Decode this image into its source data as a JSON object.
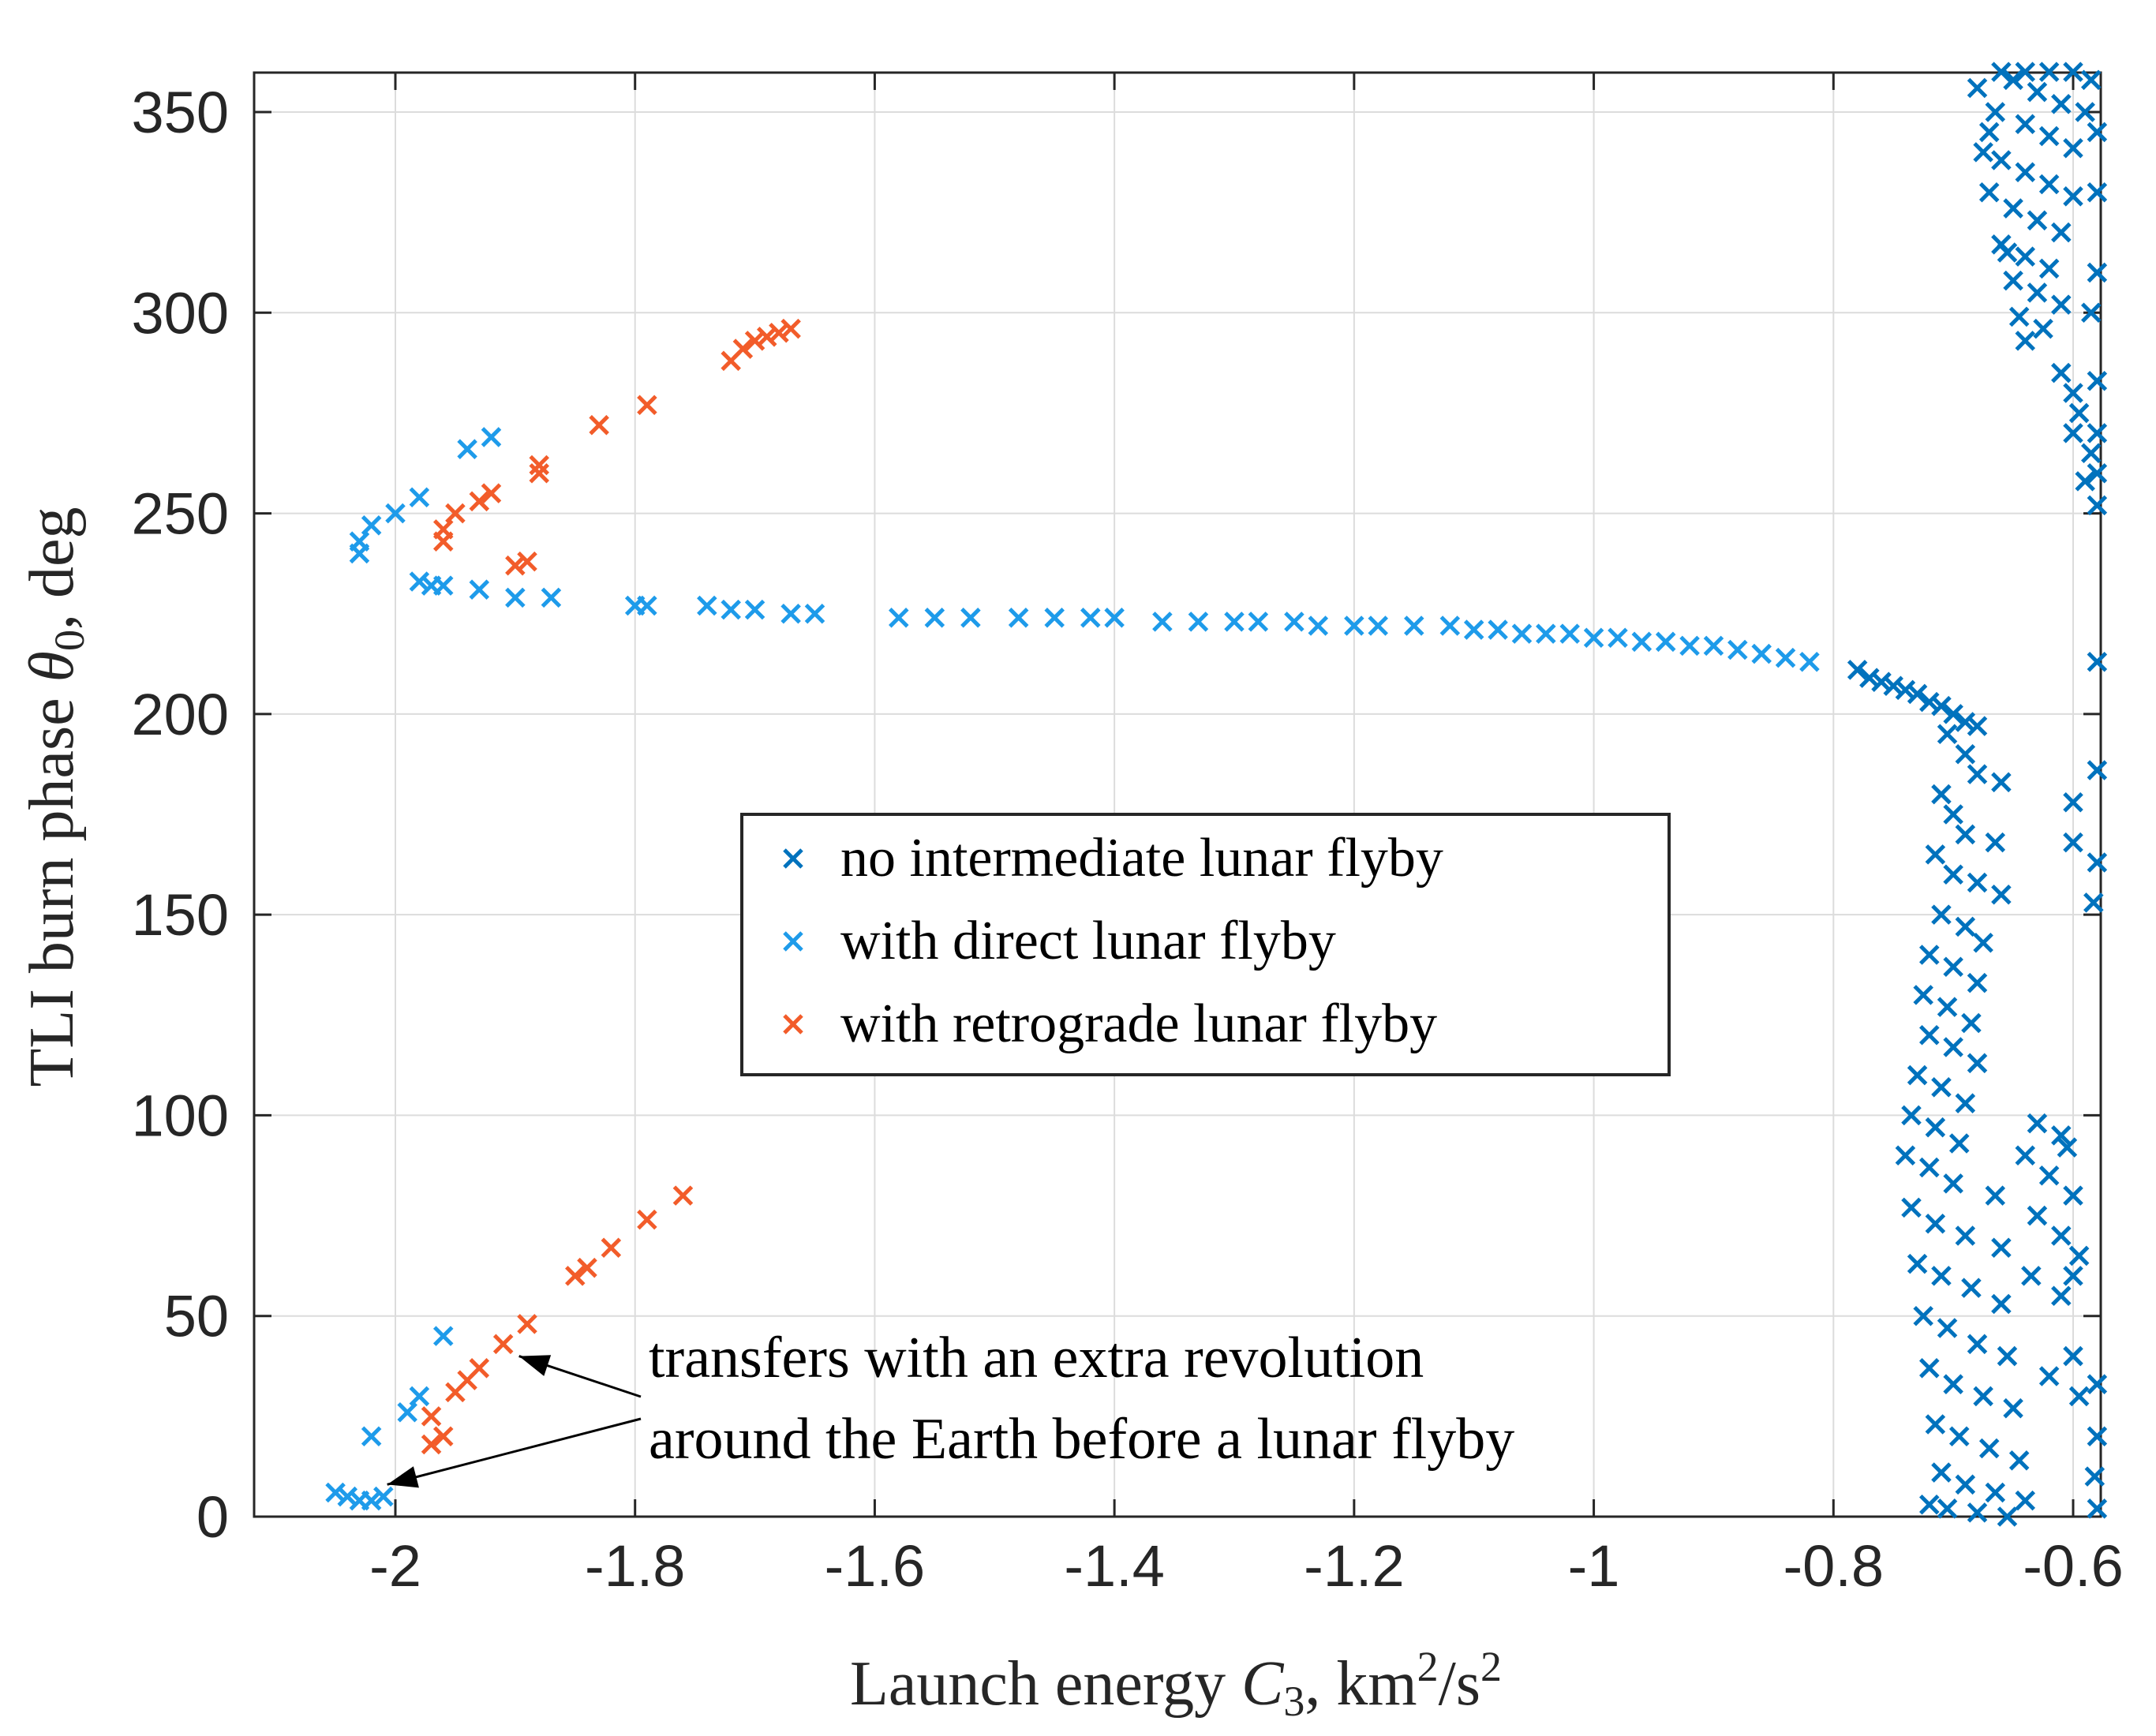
{
  "chart_data": {
    "type": "scatter",
    "xlabel_parts": {
      "prefix": "Launch energy",
      "var": "C",
      "sub": "3",
      "comma": ", km",
      "exp1": "2",
      "mid": "/s",
      "exp2": "2"
    },
    "ylabel_parts": {
      "prefix": "TLI burn phase",
      "var": "θ",
      "sub": "0",
      "suffix": ", deg"
    },
    "xlim": [
      -2.06,
      -0.58
    ],
    "ylim": [
      0,
      360
    ],
    "xticks": [
      -2,
      -1.8,
      -1.6,
      -1.4,
      -1.2,
      -1,
      -0.8,
      -0.6
    ],
    "xtick_labels": [
      "-2",
      "-1.8",
      "-1.6",
      "-1.4",
      "-1.2",
      "-1",
      "-0.8",
      "-0.6"
    ],
    "yticks": [
      0,
      50,
      100,
      150,
      200,
      250,
      300,
      350
    ],
    "ytick_labels": [
      "0",
      "50",
      "100",
      "150",
      "200",
      "250",
      "300",
      "350"
    ],
    "grid": true,
    "legend": {
      "placement": "center",
      "entries": [
        {
          "label": "no intermediate lunar flyby",
          "color": "#0072BD"
        },
        {
          "label": "with direct lunar flyby",
          "color": "#1E9BEA"
        },
        {
          "label": "with retrograde lunar flyby",
          "color": "#F25C2A"
        }
      ]
    },
    "annotation": {
      "lines": [
        "transfers with an extra revolution",
        "around the Earth before a lunar flyby"
      ],
      "arrow_targets": [
        [
          -1.91,
          40
        ],
        [
          -2.02,
          8
        ]
      ]
    },
    "series": [
      {
        "name": "no intermediate lunar flyby",
        "color": "#0072BD",
        "points": [
          [
            -0.78,
            211
          ],
          [
            -0.77,
            209
          ],
          [
            -0.76,
            208
          ],
          [
            -0.75,
            207
          ],
          [
            -0.74,
            206
          ],
          [
            -0.73,
            205
          ],
          [
            -0.72,
            203
          ],
          [
            -0.71,
            202
          ],
          [
            -0.7,
            200
          ],
          [
            -0.69,
            198
          ],
          [
            -0.68,
            197
          ],
          [
            -0.705,
            195
          ],
          [
            -0.69,
            190
          ],
          [
            -0.68,
            185
          ],
          [
            -0.66,
            183
          ],
          [
            -0.71,
            180
          ],
          [
            -0.7,
            175
          ],
          [
            -0.69,
            170
          ],
          [
            -0.665,
            168
          ],
          [
            -0.715,
            165
          ],
          [
            -0.7,
            160
          ],
          [
            -0.68,
            158
          ],
          [
            -0.66,
            155
          ],
          [
            -0.71,
            150
          ],
          [
            -0.69,
            147
          ],
          [
            -0.675,
            143
          ],
          [
            -0.72,
            140
          ],
          [
            -0.7,
            137
          ],
          [
            -0.68,
            133
          ],
          [
            -0.725,
            130
          ],
          [
            -0.705,
            127
          ],
          [
            -0.685,
            123
          ],
          [
            -0.72,
            120
          ],
          [
            -0.7,
            117
          ],
          [
            -0.68,
            113
          ],
          [
            -0.73,
            110
          ],
          [
            -0.71,
            107
          ],
          [
            -0.69,
            103
          ],
          [
            -0.735,
            100
          ],
          [
            -0.715,
            97
          ],
          [
            -0.695,
            93
          ],
          [
            -0.74,
            90
          ],
          [
            -0.72,
            87
          ],
          [
            -0.7,
            83
          ],
          [
            -0.665,
            80
          ],
          [
            -0.735,
            77
          ],
          [
            -0.715,
            73
          ],
          [
            -0.69,
            70
          ],
          [
            -0.66,
            67
          ],
          [
            -0.73,
            63
          ],
          [
            -0.71,
            60
          ],
          [
            -0.685,
            57
          ],
          [
            -0.66,
            53
          ],
          [
            -0.725,
            50
          ],
          [
            -0.705,
            47
          ],
          [
            -0.68,
            43
          ],
          [
            -0.655,
            40
          ],
          [
            -0.72,
            37
          ],
          [
            -0.7,
            33
          ],
          [
            -0.675,
            30
          ],
          [
            -0.65,
            27
          ],
          [
            -0.715,
            23
          ],
          [
            -0.695,
            20
          ],
          [
            -0.67,
            17
          ],
          [
            -0.645,
            14
          ],
          [
            -0.71,
            11
          ],
          [
            -0.69,
            8
          ],
          [
            -0.665,
            6
          ],
          [
            -0.64,
            4
          ],
          [
            -0.705,
            2
          ],
          [
            -0.68,
            1
          ],
          [
            -0.655,
            0
          ],
          [
            -0.72,
            3
          ],
          [
            -0.63,
            98
          ],
          [
            -0.61,
            95
          ],
          [
            -0.64,
            90
          ],
          [
            -0.62,
            85
          ],
          [
            -0.6,
            80
          ],
          [
            -0.63,
            75
          ],
          [
            -0.61,
            70
          ],
          [
            -0.635,
            60
          ],
          [
            -0.61,
            55
          ],
          [
            -0.6,
            40
          ],
          [
            -0.62,
            35
          ],
          [
            -0.595,
            30
          ],
          [
            -0.58,
            33
          ],
          [
            -0.58,
            20
          ],
          [
            -0.582,
            10
          ],
          [
            -0.58,
            2
          ],
          [
            -0.6,
            60
          ],
          [
            -0.595,
            65
          ],
          [
            -0.605,
            92
          ],
          [
            -0.65,
            358
          ],
          [
            -0.63,
            355
          ],
          [
            -0.61,
            352
          ],
          [
            -0.59,
            350
          ],
          [
            -0.64,
            347
          ],
          [
            -0.62,
            344
          ],
          [
            -0.6,
            341
          ],
          [
            -0.66,
            338
          ],
          [
            -0.64,
            335
          ],
          [
            -0.62,
            332
          ],
          [
            -0.6,
            329
          ],
          [
            -0.65,
            326
          ],
          [
            -0.63,
            323
          ],
          [
            -0.61,
            320
          ],
          [
            -0.66,
            317
          ],
          [
            -0.64,
            314
          ],
          [
            -0.62,
            311
          ],
          [
            -0.65,
            308
          ],
          [
            -0.63,
            305
          ],
          [
            -0.61,
            302
          ],
          [
            -0.645,
            299
          ],
          [
            -0.625,
            296
          ],
          [
            -0.64,
            293
          ],
          [
            -0.68,
            356
          ],
          [
            -0.67,
            345
          ],
          [
            -0.67,
            330
          ],
          [
            -0.655,
            315
          ],
          [
            -0.61,
            285
          ],
          [
            -0.6,
            280
          ],
          [
            -0.595,
            275
          ],
          [
            -0.6,
            270
          ],
          [
            -0.585,
            265
          ],
          [
            -0.59,
            258
          ],
          [
            -0.58,
            252
          ],
          [
            -0.585,
            300
          ],
          [
            -0.58,
            310
          ],
          [
            -0.58,
            330
          ],
          [
            -0.58,
            345
          ],
          [
            -0.585,
            358
          ],
          [
            -0.6,
            360
          ],
          [
            -0.62,
            360
          ],
          [
            -0.64,
            360
          ],
          [
            -0.66,
            360
          ],
          [
            -0.665,
            350
          ],
          [
            -0.675,
            340
          ],
          [
            -0.58,
            283
          ],
          [
            -0.58,
            270
          ],
          [
            -0.58,
            260
          ],
          [
            -0.58,
            186
          ],
          [
            -0.58,
            163
          ],
          [
            -0.583,
            153
          ],
          [
            -0.6,
            178
          ],
          [
            -0.6,
            168
          ],
          [
            -0.58,
            213
          ]
        ]
      },
      {
        "name": "with direct lunar flyby",
        "color": "#1E9BEA",
        "points": [
          [
            -2.03,
            240
          ],
          [
            -2.03,
            243
          ],
          [
            -2.02,
            247
          ],
          [
            -2.0,
            250
          ],
          [
            -1.98,
            254
          ],
          [
            -1.94,
            266
          ],
          [
            -1.92,
            269
          ],
          [
            -1.98,
            233
          ],
          [
            -1.97,
            232
          ],
          [
            -1.96,
            232
          ],
          [
            -1.93,
            231
          ],
          [
            -1.9,
            229
          ],
          [
            -1.87,
            229
          ],
          [
            -1.8,
            227
          ],
          [
            -1.79,
            227
          ],
          [
            -1.74,
            227
          ],
          [
            -1.72,
            226
          ],
          [
            -1.7,
            226
          ],
          [
            -1.67,
            225
          ],
          [
            -1.65,
            225
          ],
          [
            -1.58,
            224
          ],
          [
            -1.55,
            224
          ],
          [
            -1.52,
            224
          ],
          [
            -1.48,
            224
          ],
          [
            -1.45,
            224
          ],
          [
            -1.42,
            224
          ],
          [
            -1.4,
            224
          ],
          [
            -1.36,
            223
          ],
          [
            -1.33,
            223
          ],
          [
            -1.3,
            223
          ],
          [
            -1.28,
            223
          ],
          [
            -1.25,
            223
          ],
          [
            -1.23,
            222
          ],
          [
            -1.2,
            222
          ],
          [
            -1.18,
            222
          ],
          [
            -1.15,
            222
          ],
          [
            -1.12,
            222
          ],
          [
            -1.1,
            221
          ],
          [
            -1.08,
            221
          ],
          [
            -1.06,
            220
          ],
          [
            -1.04,
            220
          ],
          [
            -1.02,
            220
          ],
          [
            -1.0,
            219
          ],
          [
            -0.98,
            219
          ],
          [
            -0.96,
            218
          ],
          [
            -0.94,
            218
          ],
          [
            -0.92,
            217
          ],
          [
            -0.9,
            217
          ],
          [
            -0.88,
            216
          ],
          [
            -0.86,
            215
          ],
          [
            -0.84,
            214
          ],
          [
            -0.82,
            213
          ],
          [
            -2.05,
            6
          ],
          [
            -2.04,
            5
          ],
          [
            -2.03,
            4
          ],
          [
            -2.02,
            4
          ],
          [
            -2.01,
            5
          ],
          [
            -2.02,
            20
          ],
          [
            -1.99,
            26
          ],
          [
            -1.98,
            30
          ],
          [
            -1.96,
            45
          ]
        ]
      },
      {
        "name": "with retrograde lunar flyby",
        "color": "#F25C2A",
        "points": [
          [
            -1.72,
            288
          ],
          [
            -1.71,
            291
          ],
          [
            -1.7,
            293
          ],
          [
            -1.69,
            294
          ],
          [
            -1.68,
            295
          ],
          [
            -1.67,
            296
          ],
          [
            -1.79,
            277
          ],
          [
            -1.83,
            272
          ],
          [
            -1.88,
            262
          ],
          [
            -1.88,
            260
          ],
          [
            -1.92,
            255
          ],
          [
            -1.93,
            253
          ],
          [
            -1.95,
            250
          ],
          [
            -1.96,
            246
          ],
          [
            -1.96,
            243
          ],
          [
            -1.9,
            237
          ],
          [
            -1.89,
            238
          ],
          [
            -1.76,
            80
          ],
          [
            -1.79,
            74
          ],
          [
            -1.82,
            67
          ],
          [
            -1.84,
            62
          ],
          [
            -1.85,
            60
          ],
          [
            -1.89,
            48
          ],
          [
            -1.91,
            43
          ],
          [
            -1.93,
            37
          ],
          [
            -1.94,
            34
          ],
          [
            -1.95,
            31
          ],
          [
            -1.97,
            25
          ],
          [
            -1.96,
            20
          ],
          [
            -1.97,
            18
          ]
        ]
      }
    ]
  }
}
